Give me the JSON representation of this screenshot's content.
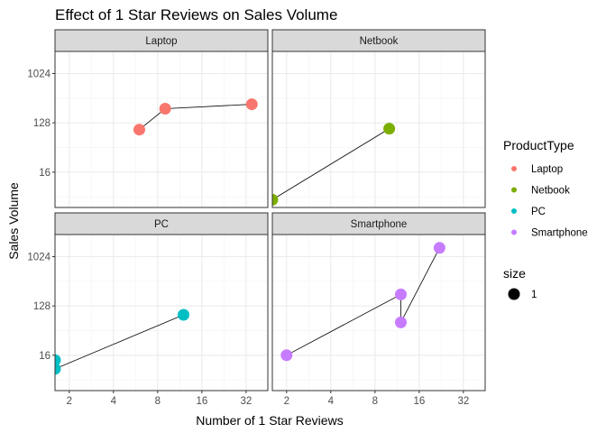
{
  "chart_data": {
    "type": "scatter",
    "title": "Effect of 1 Star Reviews on Sales Volume",
    "xlabel": "Number of 1 Star Reviews",
    "ylabel": "Sales Volume",
    "x_scale": "log2",
    "y_scale": "log2",
    "xlim": [
      1.6,
      45
    ],
    "ylim": [
      3.6,
      2600
    ],
    "x_ticks": [
      2,
      4,
      8,
      16,
      32
    ],
    "x_tick_labels": [
      "2",
      "4",
      "8",
      "16",
      "32"
    ],
    "y_ticks": [
      16,
      128,
      1024
    ],
    "y_tick_labels": [
      "16",
      "128",
      "1024"
    ],
    "grid": true,
    "legend_position": "right",
    "legend": {
      "title": "ProductType",
      "entries": [
        {
          "label": "Laptop",
          "color": "#F8766D"
        },
        {
          "label": "Netbook",
          "color": "#7CAE00"
        },
        {
          "label": "PC",
          "color": "#00BFC4"
        },
        {
          "label": "Smartphone",
          "color": "#C77CFF"
        }
      ],
      "size_title": "size",
      "size_label": "1"
    },
    "facets": [
      {
        "name": "Laptop",
        "color": "#F8766D",
        "points": [
          {
            "x": 6,
            "y": 96
          },
          {
            "x": 9,
            "y": 232
          },
          {
            "x": 35,
            "y": 280
          }
        ]
      },
      {
        "name": "Netbook",
        "color": "#7CAE00",
        "points": [
          {
            "x": 1.6,
            "y": 5
          },
          {
            "x": 10,
            "y": 100
          }
        ]
      },
      {
        "name": "PC",
        "color": "#00BFC4",
        "points": [
          {
            "x": 1.6,
            "y": 13
          },
          {
            "x": 1.6,
            "y": 9
          },
          {
            "x": 12,
            "y": 88
          }
        ]
      },
      {
        "name": "Smartphone",
        "color": "#C77CFF",
        "points": [
          {
            "x": 2,
            "y": 16
          },
          {
            "x": 12,
            "y": 208
          },
          {
            "x": 12,
            "y": 64
          },
          {
            "x": 22,
            "y": 1480
          }
        ]
      }
    ]
  }
}
